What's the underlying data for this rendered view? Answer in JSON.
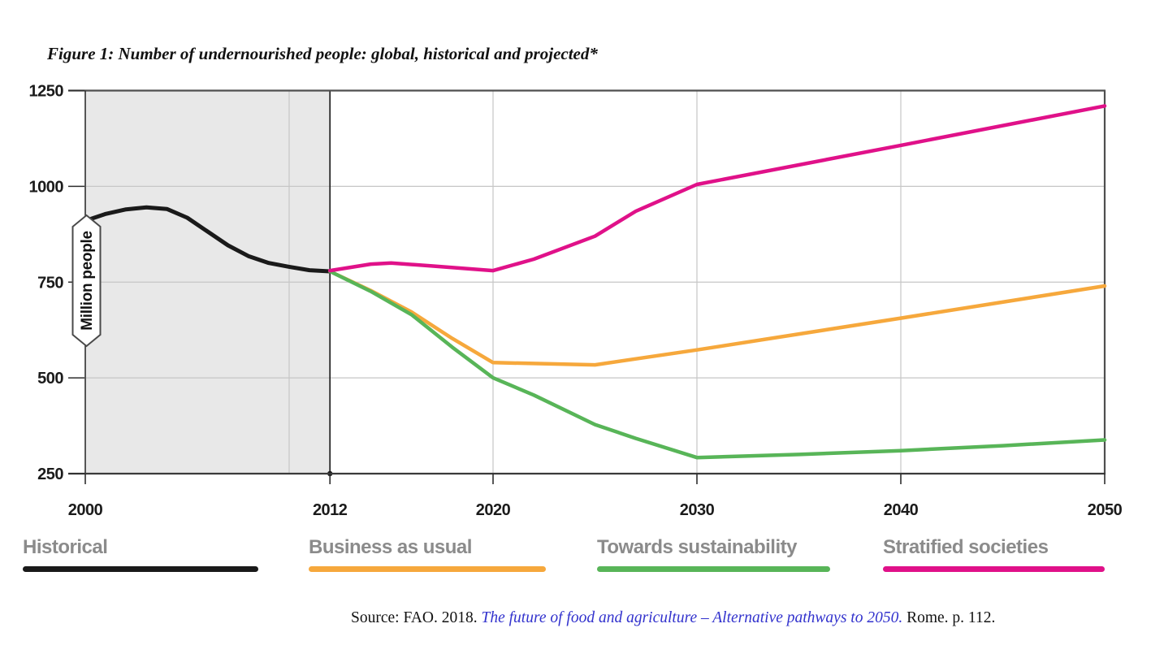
{
  "figure_title": "Figure 1: Number of undernourished people: global, historical and projected*",
  "chart_data": {
    "type": "line",
    "title": "Figure 1: Number of undernourished people: global, historical and projected*",
    "ylabel": "Million people",
    "xlabel": "",
    "ylim": [
      250,
      1250
    ],
    "xlim": [
      2000,
      2050
    ],
    "yticks": [
      1250,
      1000,
      750,
      500,
      250
    ],
    "xticks": [
      2000,
      2012,
      2020,
      2030,
      2040,
      2050
    ],
    "grid": true,
    "legend_position": "bottom",
    "divider_year": 2012,
    "minor_vertical_gridlines": [
      2010,
      2020,
      2030,
      2040
    ],
    "historical_shaded_region": {
      "from_year": 2000,
      "to_year": 2012,
      "fill": "#e8e8e8"
    },
    "series": [
      {
        "name": "Historical",
        "color": "#1a1a1a",
        "points": [
          [
            2000,
            910
          ],
          [
            2001,
            928
          ],
          [
            2002,
            940
          ],
          [
            2003,
            945
          ],
          [
            2004,
            941
          ],
          [
            2005,
            918
          ],
          [
            2006,
            882
          ],
          [
            2007,
            846
          ],
          [
            2008,
            818
          ],
          [
            2009,
            800
          ],
          [
            2010,
            790
          ],
          [
            2011,
            781
          ],
          [
            2012,
            778
          ]
        ]
      },
      {
        "name": "Business as usual",
        "color": "#f6a83c",
        "points": [
          [
            2012,
            778
          ],
          [
            2014,
            728
          ],
          [
            2016,
            672
          ],
          [
            2018,
            603
          ],
          [
            2020,
            540
          ],
          [
            2025,
            534
          ],
          [
            2030,
            573
          ],
          [
            2040,
            656
          ],
          [
            2050,
            740
          ]
        ]
      },
      {
        "name": "Towards sustainability",
        "color": "#58b558",
        "points": [
          [
            2012,
            778
          ],
          [
            2014,
            726
          ],
          [
            2016,
            665
          ],
          [
            2018,
            580
          ],
          [
            2020,
            500
          ],
          [
            2022,
            455
          ],
          [
            2025,
            378
          ],
          [
            2027,
            342
          ],
          [
            2030,
            292
          ],
          [
            2035,
            300
          ],
          [
            2040,
            310
          ],
          [
            2045,
            323
          ],
          [
            2050,
            338
          ]
        ]
      },
      {
        "name": "Stratified societies",
        "color": "#e01189",
        "points": [
          [
            2012,
            780
          ],
          [
            2014,
            797
          ],
          [
            2015,
            800
          ],
          [
            2017,
            792
          ],
          [
            2020,
            780
          ],
          [
            2022,
            810
          ],
          [
            2025,
            870
          ],
          [
            2027,
            935
          ],
          [
            2030,
            1005
          ],
          [
            2040,
            1107
          ],
          [
            2050,
            1210
          ]
        ]
      }
    ]
  },
  "legend": {
    "items": [
      {
        "label": "Historical",
        "color": "#1a1a1a"
      },
      {
        "label": "Business as usual",
        "color": "#f6a83c"
      },
      {
        "label": "Towards sustainability",
        "color": "#58b558"
      },
      {
        "label": "Stratified societies",
        "color": "#e01189"
      }
    ]
  },
  "source": {
    "prefix": "Source: FAO. 2018. ",
    "citation": "The future of food and agriculture – Alternative pathways to 2050.",
    "suffix": " Rome. p. 112."
  }
}
